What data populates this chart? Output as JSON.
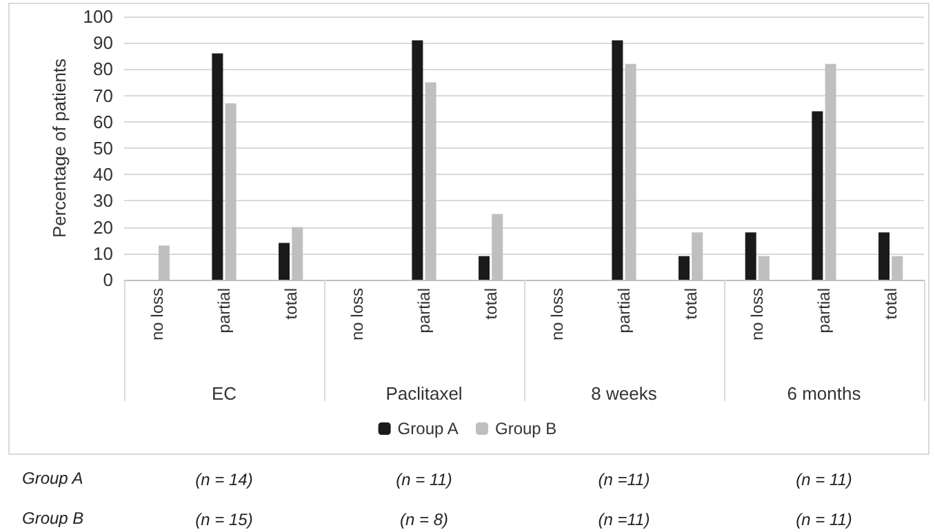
{
  "chart_data": {
    "type": "bar",
    "ylabel": "Percentage of patients",
    "categories": [
      "no loss",
      "partial",
      "total",
      "no loss",
      "partial",
      "total",
      "no loss",
      "partial",
      "total",
      "no loss",
      "partial",
      "total"
    ],
    "series": [
      {
        "name": "Group A",
        "color": "#1a1a1a",
        "values": [
          0,
          86,
          14,
          0,
          91,
          9,
          0,
          91,
          9,
          18,
          64,
          18
        ]
      },
      {
        "name": "Group B",
        "color": "#bfbfbf",
        "values": [
          13,
          67,
          20,
          0,
          75,
          25,
          0,
          82,
          18,
          9,
          82,
          9
        ]
      }
    ],
    "ylim": [
      0,
      100
    ],
    "yticks": [
      0,
      10,
      20,
      30,
      40,
      50,
      60,
      70,
      80,
      90,
      100
    ],
    "grid": "y",
    "legend": "bottom",
    "annotations": [
      "EC",
      "Paclitaxel",
      "8 weeks",
      "6 months",
      "(n = 14)",
      "(n = 11)",
      "(n =11)",
      "(n = 11)",
      "(n = 15)",
      "(n = 8)",
      "(n =11)",
      "(n = 11)"
    ]
  }
}
